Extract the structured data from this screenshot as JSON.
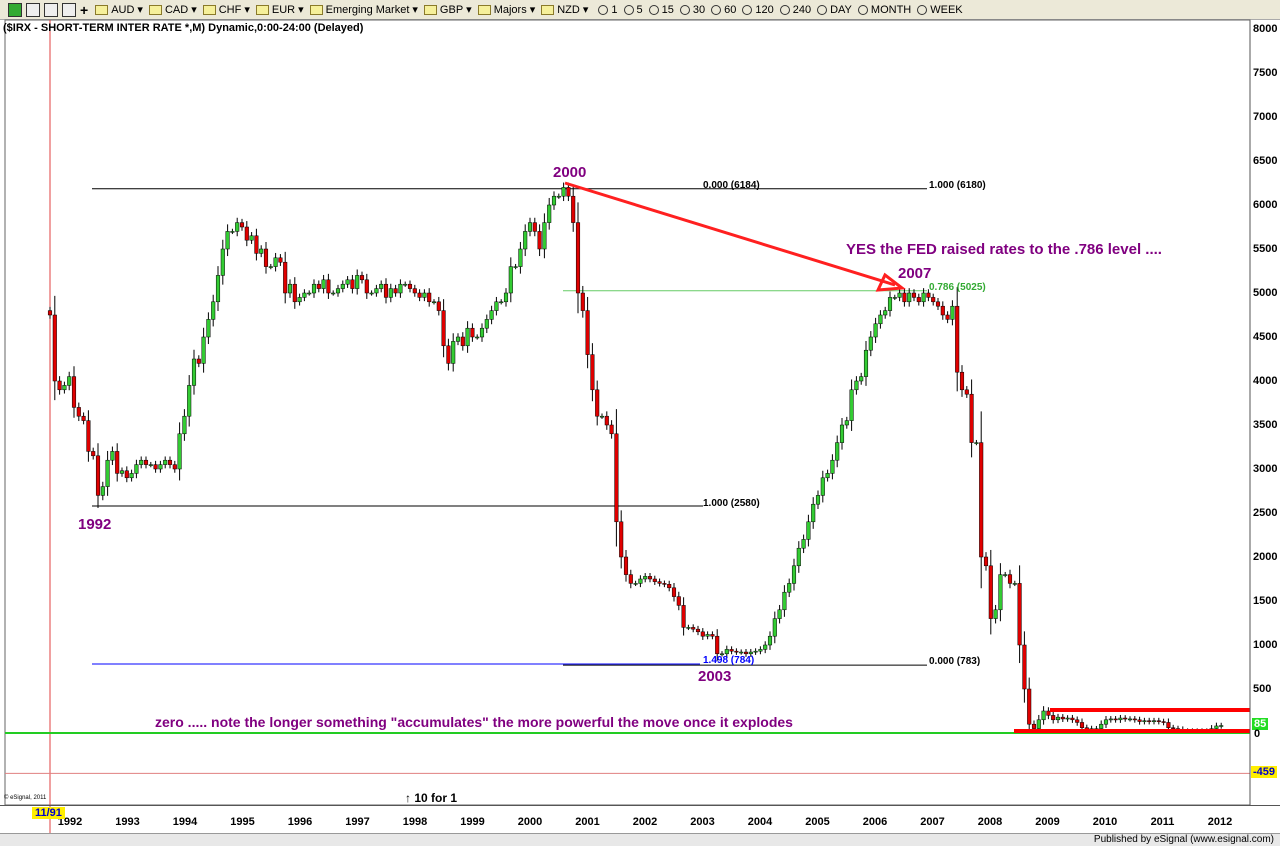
{
  "toolbar": {
    "items": [
      "AUD",
      "CAD",
      "CHF",
      "EUR",
      "Emerging Market",
      "GBP",
      "Majors",
      "NZD"
    ],
    "intervals": [
      "1",
      "5",
      "15",
      "30",
      "60",
      "120",
      "240",
      "DAY",
      "MONTH",
      "WEEK"
    ]
  },
  "chart_title": "($IRX - SHORT-TERM INTER RATE *,M) Dynamic,0:00-24:00 (Delayed)",
  "chart_data": {
    "type": "candlestick",
    "start": "11/91",
    "frequency": "monthly",
    "closes": [
      4750,
      4000,
      3900,
      3950,
      4050,
      3700,
      3600,
      3550,
      3200,
      3150,
      2700,
      2800,
      3100,
      3200,
      2950,
      2980,
      2900,
      2950,
      3050,
      3100,
      3050,
      3050,
      3000,
      3050,
      3100,
      3050,
      3000,
      3400,
      3600,
      3950,
      4250,
      4200,
      4500,
      4700,
      4900,
      5200,
      5500,
      5700,
      5700,
      5800,
      5750,
      5600,
      5650,
      5450,
      5500,
      5300,
      5300,
      5400,
      5350,
      5000,
      5100,
      4900,
      4950,
      5000,
      5000,
      5100,
      5050,
      5150,
      5000,
      5000,
      5050,
      5100,
      5150,
      5050,
      5200,
      5150,
      5000,
      5000,
      5050,
      5100,
      4950,
      5050,
      5000,
      5100,
      5100,
      5050,
      5000,
      4950,
      5000,
      4900,
      4900,
      4800,
      4400,
      4200,
      4450,
      4500,
      4400,
      4600,
      4500,
      4500,
      4600,
      4700,
      4800,
      4900,
      4900,
      5000,
      5300,
      5300,
      5500,
      5700,
      5800,
      5700,
      5500,
      5800,
      6000,
      6100,
      6100,
      6200,
      6100,
      5800,
      5000,
      4800,
      4300,
      3900,
      3600,
      3600,
      3500,
      3400,
      2400,
      2000,
      1800,
      1700,
      1700,
      1750,
      1780,
      1750,
      1720,
      1700,
      1690,
      1650,
      1550,
      1450,
      1200,
      1200,
      1180,
      1150,
      1100,
      1120,
      1100,
      900,
      900,
      950,
      930,
      920,
      920,
      900,
      920,
      930,
      950,
      1000,
      1100,
      1300,
      1400,
      1600,
      1700,
      1900,
      2100,
      2200,
      2400,
      2600,
      2700,
      2900,
      2950,
      3100,
      3300,
      3500,
      3550,
      3900,
      4000,
      4050,
      4350,
      4500,
      4650,
      4750,
      4800,
      4950,
      4950,
      5000,
      4900,
      5000,
      4950,
      4900,
      5000,
      4950,
      4900,
      4850,
      4750,
      4700,
      4850,
      4100,
      3900,
      3850,
      3300,
      3300,
      2000,
      1900,
      1300,
      1400,
      1800,
      1800,
      1700,
      1700,
      1000,
      500,
      100,
      50,
      150,
      250,
      200,
      150,
      180,
      160,
      170,
      150,
      120,
      60,
      40,
      50,
      50,
      100,
      150,
      160,
      150,
      170,
      160,
      160,
      150,
      130,
      140,
      130,
      140,
      130,
      120,
      60,
      50,
      40,
      20,
      10,
      20,
      10,
      20,
      10,
      50,
      80,
      85
    ],
    "ylim": [
      -600,
      8000
    ],
    "yticks": [
      500,
      1000,
      1500,
      2000,
      2500,
      3000,
      3500,
      4000,
      4500,
      5000,
      5500,
      6000,
      6500,
      7000,
      7500,
      8000
    ],
    "xticks": [
      "1992",
      "1993",
      "1994",
      "1995",
      "1996",
      "1997",
      "1998",
      "1999",
      "2000",
      "2001",
      "2002",
      "2003",
      "2004",
      "2005",
      "2006",
      "2007",
      "2008",
      "2009",
      "2010",
      "2011",
      "2012"
    ],
    "last_value": "85",
    "zero_label": "0",
    "cursor_value": "-459",
    "cursor_date": "11/91",
    "fib_levels": [
      {
        "label": "0.000 (6184)",
        "value": 6184,
        "color": "#000000"
      },
      {
        "label": "1.000 (6180)",
        "value": 6180,
        "color": "#000000"
      },
      {
        "label": "1.000 (2580)",
        "value": 2580,
        "color": "#000000"
      },
      {
        "label": "0.786 (5025)",
        "value": 5025,
        "color": "#33aa33"
      },
      {
        "label": "1.498 (784)",
        "value": 784,
        "color": "#0000ff"
      },
      {
        "label": "0.000 (783)",
        "value": 783,
        "color": "#000000"
      }
    ],
    "annotations": {
      "a2000": "2000",
      "a1992": "1992",
      "a2003": "2003",
      "a2007": "2007",
      "fed": "YES the FED raised rates to the .786 level ....",
      "zero": "zero ..... note the longer something \"accumulates\" the more powerful the move once it explodes",
      "split": "↑ 10 for 1",
      "copyright": "© eSignal, 2011"
    },
    "colors": {
      "up": "#33cc33",
      "down": "#e00000",
      "zero_line": "#22cc22",
      "arrow": "#ff2020",
      "annotation": "#800080"
    }
  },
  "status": "Published by eSignal (www.esignal.com)"
}
